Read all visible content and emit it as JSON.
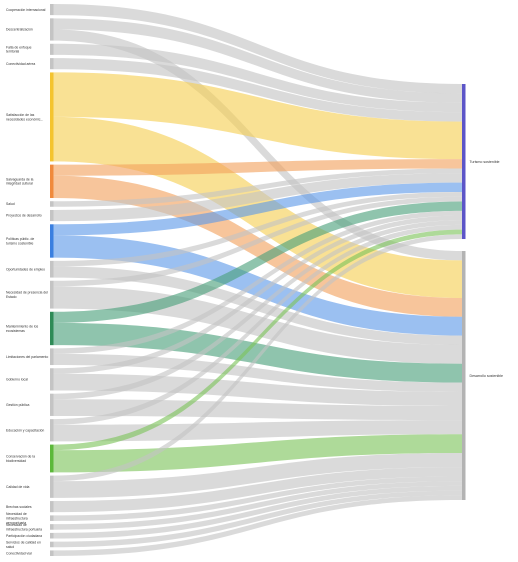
{
  "diagram": {
    "type": "sankey",
    "targets": [
      {
        "id": "turismo",
        "label": "Turismo sostenible",
        "color": "#8f8be0",
        "bar_color": "#5c55c8"
      },
      {
        "id": "desarrollo",
        "label": "Desarrollo sostenible",
        "color": "#c6c6c6",
        "bar_color": "#b3b3b3"
      }
    ],
    "sources": [
      {
        "label": "Cooperación internacional",
        "color": "#c4c4c4",
        "flows": [
          {
            "to": "turismo",
            "value": 2
          }
        ]
      },
      {
        "label": "Descentralización",
        "color": "#c4c4c4",
        "flows": [
          {
            "to": "turismo",
            "value": 2
          },
          {
            "to": "desarrollo",
            "value": 2
          }
        ]
      },
      {
        "label": "Falta de enfoque territorial",
        "color": "#c4c4c4",
        "flows": [
          {
            "to": "turismo",
            "value": 2
          }
        ]
      },
      {
        "label": "Conectividad aérea",
        "color": "#c4c4c4",
        "flows": [
          {
            "to": "turismo",
            "value": 2
          }
        ]
      },
      {
        "label": "Satisfacción de las necesidades económic...",
        "color": "#f6cf52",
        "bar_color": "#f4c430",
        "flows": [
          {
            "to": "turismo",
            "value": 8
          },
          {
            "to": "desarrollo",
            "value": 8
          }
        ]
      },
      {
        "label": "Salvaguarda de la integridad cultural",
        "color": "#f2a15e",
        "bar_color": "#f08a3c",
        "flows": [
          {
            "to": "turismo",
            "value": 2
          },
          {
            "to": "desarrollo",
            "value": 4
          }
        ]
      },
      {
        "label": "Salud",
        "color": "#c4c4c4",
        "flows": [
          {
            "to": "turismo",
            "value": 1
          }
        ]
      },
      {
        "label": "Proyectos de desarrollo",
        "color": "#c4c4c4",
        "flows": [
          {
            "to": "turismo",
            "value": 2
          }
        ]
      },
      {
        "label": "Políticas públic. de turismo sostenible",
        "color": "#5e9ae8",
        "bar_color": "#3a7fe0",
        "flows": [
          {
            "to": "turismo",
            "value": 2
          },
          {
            "to": "desarrollo",
            "value": 4
          }
        ]
      },
      {
        "label": "Oportunidades de empleo",
        "color": "#c4c4c4",
        "flows": [
          {
            "to": "turismo",
            "value": 1
          },
          {
            "to": "desarrollo",
            "value": 2
          }
        ]
      },
      {
        "label": "Necesidad de presencia del Estado",
        "color": "#c4c4c4",
        "flows": [
          {
            "to": "turismo",
            "value": 1
          },
          {
            "to": "desarrollo",
            "value": 4
          }
        ]
      },
      {
        "label": "Mantenimiento de los ecosistemas",
        "color": "#4aa07a",
        "bar_color": "#2e8b57",
        "flows": [
          {
            "to": "turismo",
            "value": 2
          },
          {
            "to": "desarrollo",
            "value": 4
          }
        ]
      },
      {
        "label": "Limitaciones del parlamento",
        "color": "#c4c4c4",
        "flows": [
          {
            "to": "turismo",
            "value": 1
          },
          {
            "to": "desarrollo",
            "value": 2
          }
        ]
      },
      {
        "label": "Gobierno local",
        "color": "#c4c4c4",
        "flows": [
          {
            "to": "turismo",
            "value": 1
          },
          {
            "to": "desarrollo",
            "value": 3
          }
        ]
      },
      {
        "label": "Gestión pública",
        "color": "#c4c4c4",
        "flows": [
          {
            "to": "turismo",
            "value": 1
          },
          {
            "to": "desarrollo",
            "value": 3
          }
        ]
      },
      {
        "label": "Educación y capacitación",
        "color": "#c4c4c4",
        "flows": [
          {
            "to": "turismo",
            "value": 1
          },
          {
            "to": "desarrollo",
            "value": 3
          }
        ]
      },
      {
        "label": "Conservación de la biodiversidad",
        "color": "#7cc45a",
        "bar_color": "#5cb83a",
        "flows": [
          {
            "to": "turismo",
            "value": 1
          },
          {
            "to": "desarrollo",
            "value": 4
          }
        ]
      },
      {
        "label": "Calidad de vida",
        "color": "#c4c4c4",
        "flows": [
          {
            "to": "turismo",
            "value": 1
          },
          {
            "to": "desarrollo",
            "value": 3
          }
        ]
      },
      {
        "label": "Brechas sociales",
        "color": "#c4c4c4",
        "flows": [
          {
            "to": "desarrollo",
            "value": 2
          }
        ]
      },
      {
        "label": "Necesidad de infraestructura aeroportuaria",
        "color": "#c4c4c4",
        "flows": [
          {
            "to": "desarrollo",
            "value": 1
          }
        ]
      },
      {
        "label": "Necesidad de infraestructura portuaria",
        "color": "#c4c4c4",
        "flows": [
          {
            "to": "desarrollo",
            "value": 1
          }
        ]
      },
      {
        "label": "Participación ciudadana",
        "color": "#c4c4c4",
        "flows": [
          {
            "to": "desarrollo",
            "value": 1
          }
        ]
      },
      {
        "label": "Servicios de calidad en salud",
        "color": "#c4c4c4",
        "flows": [
          {
            "to": "desarrollo",
            "value": 1
          }
        ]
      },
      {
        "label": "Conectividad vial",
        "color": "#c4c4c4",
        "flows": [
          {
            "to": "desarrollo",
            "value": 1
          }
        ]
      }
    ]
  }
}
